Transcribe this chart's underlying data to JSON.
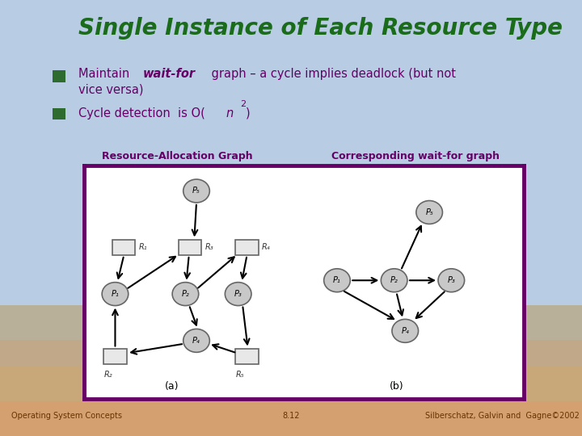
{
  "title": "Single Instance of Each Resource Type",
  "title_color": "#1a6b1a",
  "header_bg": "#b8cce4",
  "slide_bg": "#b8cce4",
  "bottom_bg_top": "#c8a882",
  "inner_bg": "white",
  "border_color": "#660066",
  "bullet_color": "#660066",
  "bullet_square": "#2e6b2e",
  "bullet1a": "Maintain ",
  "bullet1b": "wait-for",
  "bullet1c": " graph – a cycle implies deadlock (but not",
  "bullet1d": "vice versa)",
  "bullet2a": "Cycle detection  is O(",
  "bullet2b": "n",
  "bullet2c": "²",
  "bullet2d": ")",
  "label_left": "Resource-Allocation Graph",
  "label_right": "Corresponding wait-for graph",
  "label_color": "#660066",
  "footer_left": "Operating System Concepts",
  "footer_center": "8.12",
  "footer_right": "Silberschatz, Galvin and  Gagne©2002",
  "footer_color": "#663300",
  "node_face": "#c8c8c8",
  "node_edge": "#666666",
  "rect_face": "#e8e8e8",
  "rect_edge": "#666666",
  "arrow_color": "#000000"
}
